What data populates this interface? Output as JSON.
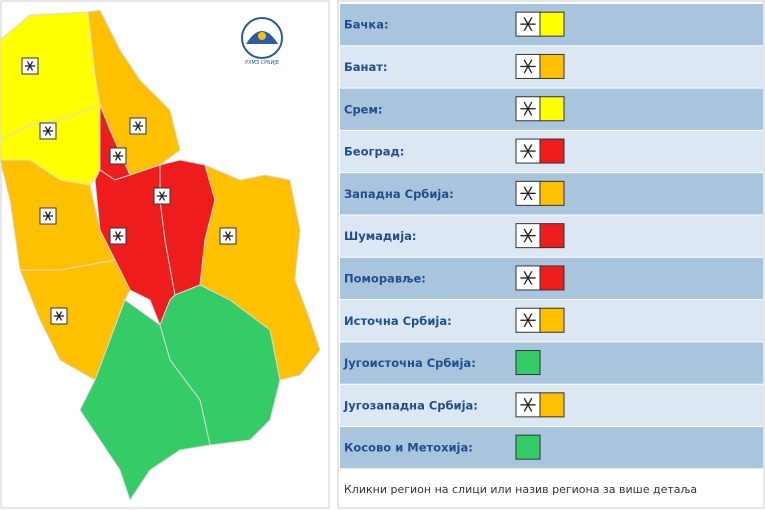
{
  "logo_text": "РХМЗ СРБИЈЕ",
  "regions": [
    {
      "name": "Бачка:",
      "snow": true,
      "color": "#ffff00"
    },
    {
      "name": "Банат:",
      "snow": true,
      "color": "#ffc000"
    },
    {
      "name": "Срем:",
      "snow": true,
      "color": "#ffff00"
    },
    {
      "name": "Београд:",
      "snow": true,
      "color": "#ee1c1c"
    },
    {
      "name": "Западна Србија:",
      "snow": true,
      "color": "#ffc000"
    },
    {
      "name": "Шумадија:",
      "snow": true,
      "color": "#ee1c1c"
    },
    {
      "name": "Поморавље:",
      "snow": true,
      "color": "#ee1c1c"
    },
    {
      "name": "Источна Србија:",
      "snow": true,
      "color": "#ffc000"
    },
    {
      "name": "Југоисточна Србија:",
      "snow": false,
      "color": "#33cc66"
    },
    {
      "name": "Југозападна Србија:",
      "snow": true,
      "color": "#ffc000"
    },
    {
      "name": "Косово и Метохија:",
      "snow": false,
      "color": "#33cc66"
    }
  ],
  "footer": "Кликни регион на слици или назив региона за више детаља"
}
